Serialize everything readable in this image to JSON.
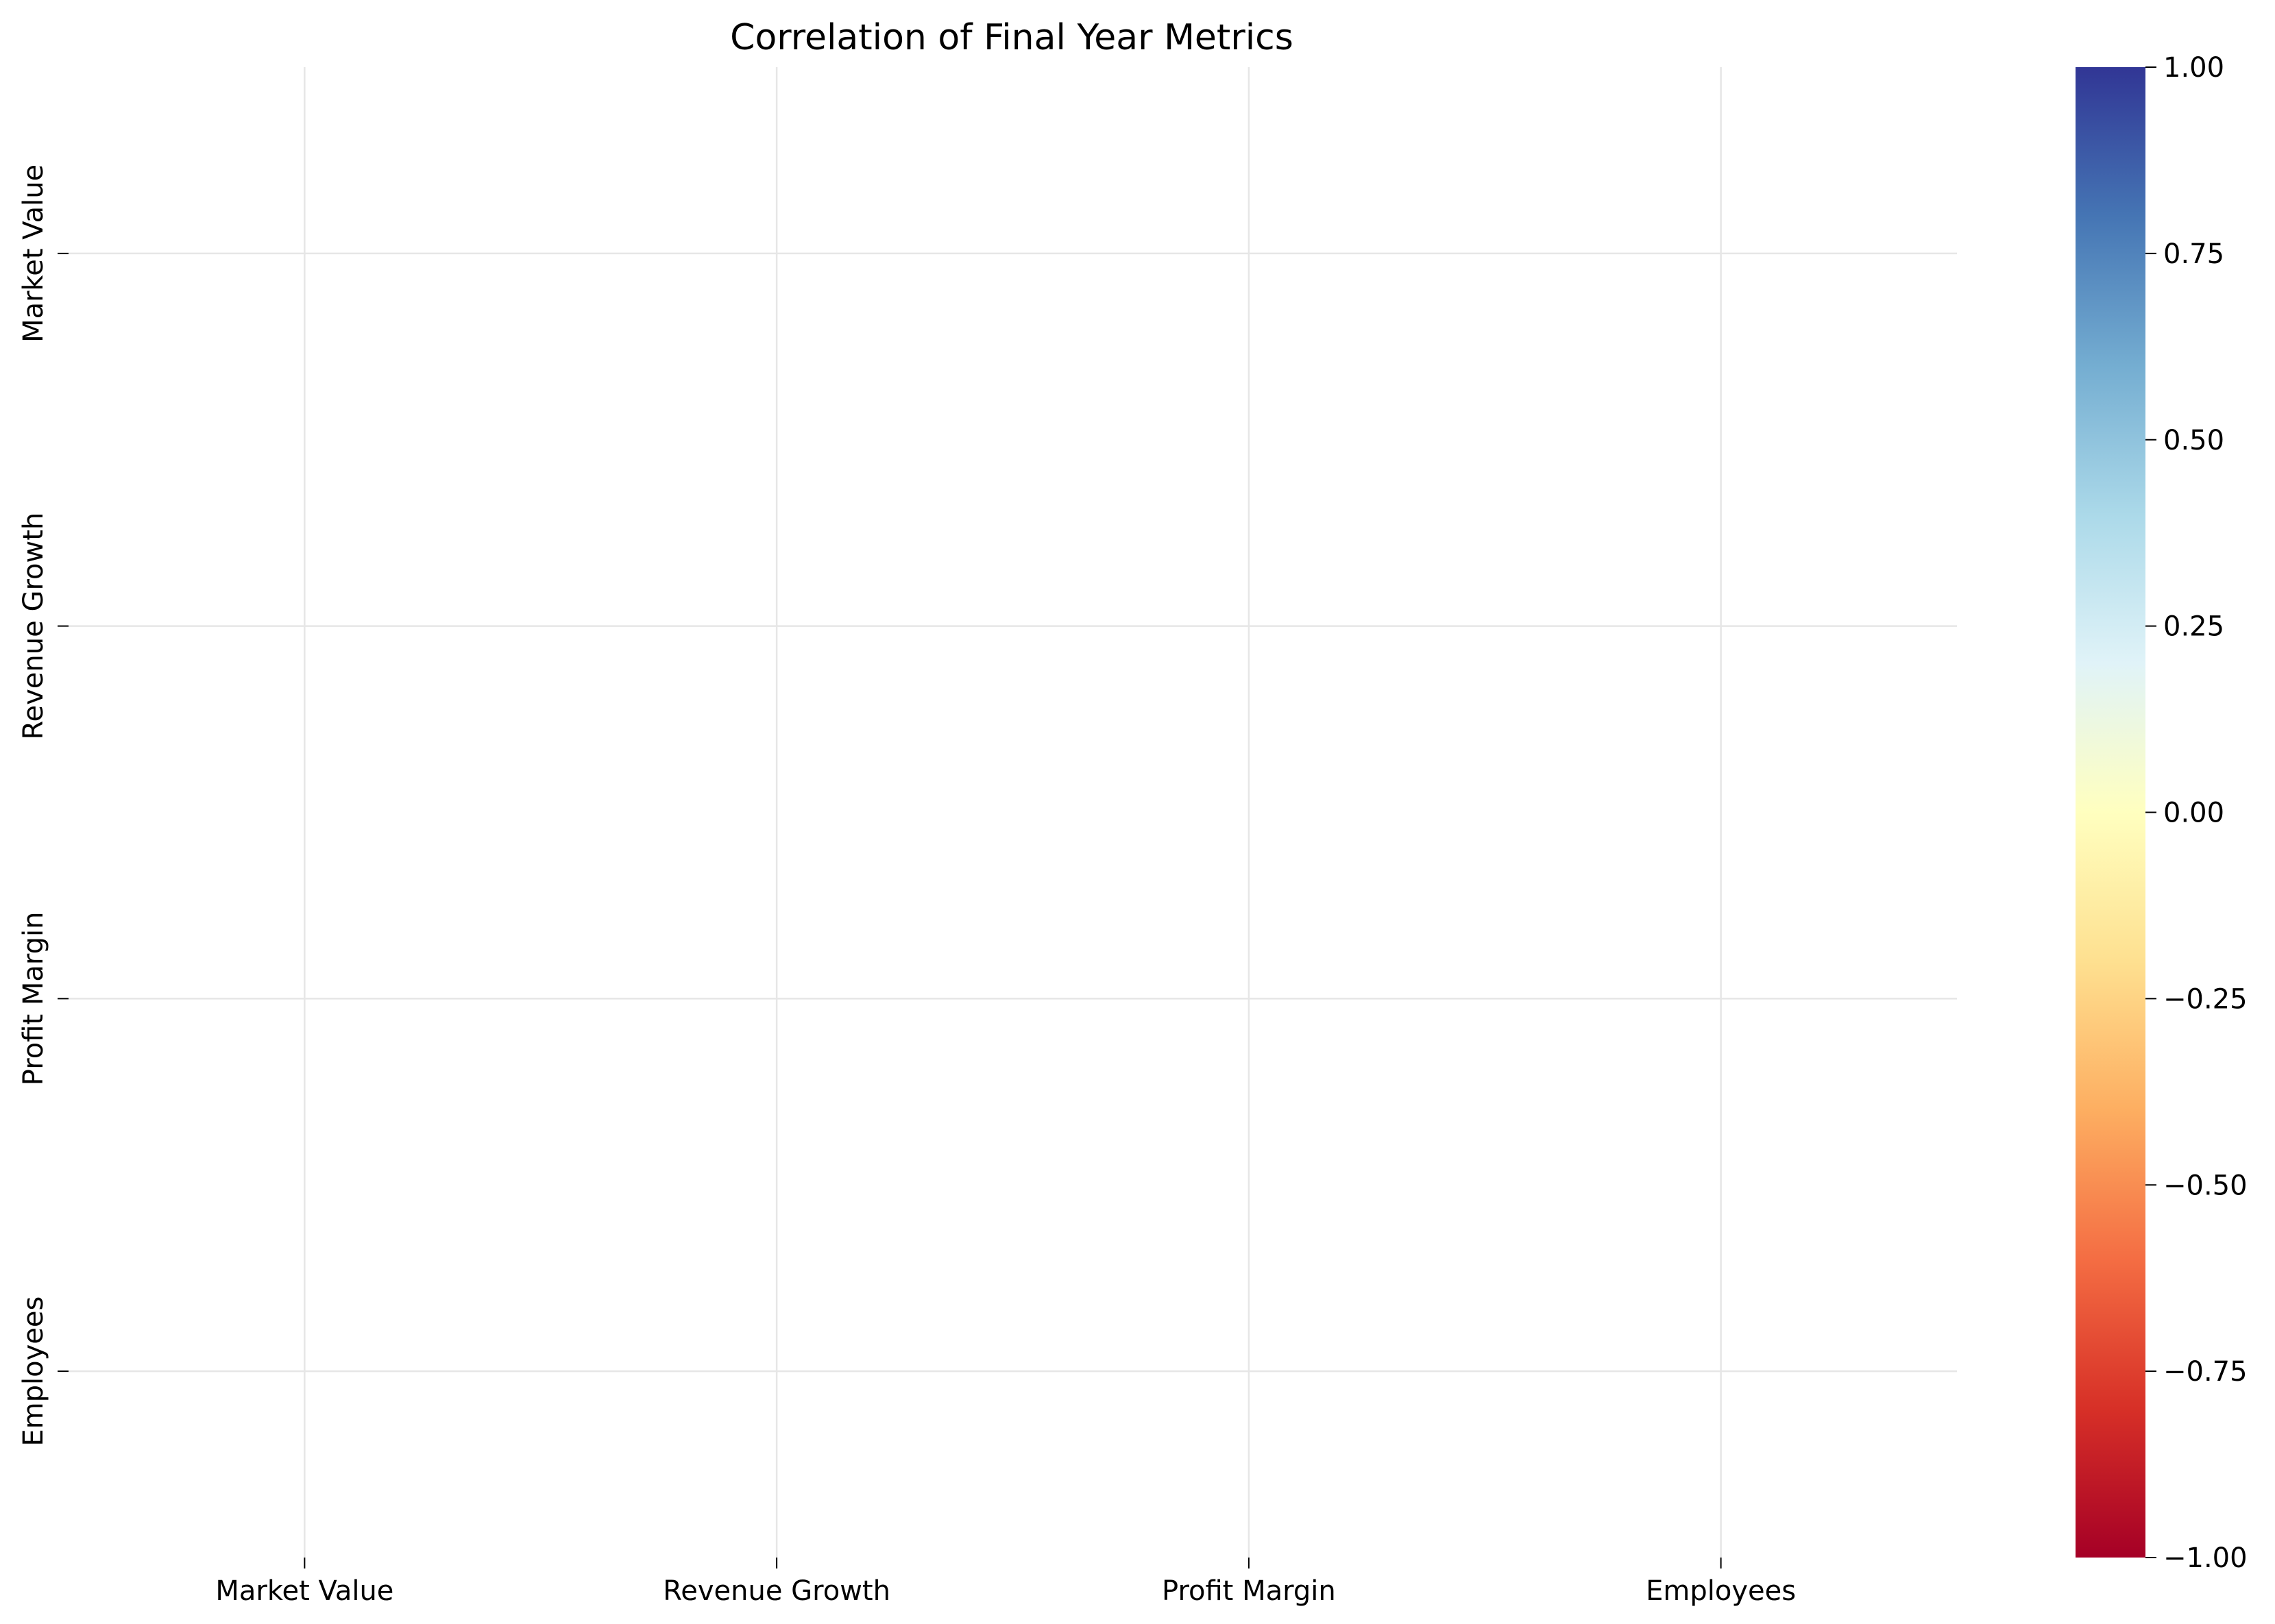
{
  "chart_data": {
    "type": "heatmap",
    "title": "Correlation of Final Year Metrics",
    "x_categories": [
      "Market Value",
      "Revenue Growth",
      "Profit Margin",
      "Employees"
    ],
    "y_categories": [
      "Market Value",
      "Revenue Growth",
      "Profit Margin",
      "Employees"
    ],
    "values": [],
    "colormap": "RdYlBu",
    "vmin": -1.0,
    "vmax": 1.0,
    "colorbar": {
      "ticks": [
        1.0,
        0.75,
        0.5,
        0.25,
        0.0,
        -0.25,
        -0.5,
        -0.75,
        -1.0
      ],
      "tick_labels": [
        "1.00",
        "0.75",
        "0.50",
        "0.25",
        "0.00",
        "−0.25",
        "−0.50",
        "−0.75",
        "−1.00"
      ],
      "colors": [
        "#a50026",
        "#d73027",
        "#f46d43",
        "#fdae61",
        "#fee090",
        "#ffffbf",
        "#e0f3f8",
        "#abd9e9",
        "#74add1",
        "#4575b4",
        "#313695"
      ]
    },
    "grid": true,
    "legend": "colorbar-right"
  }
}
